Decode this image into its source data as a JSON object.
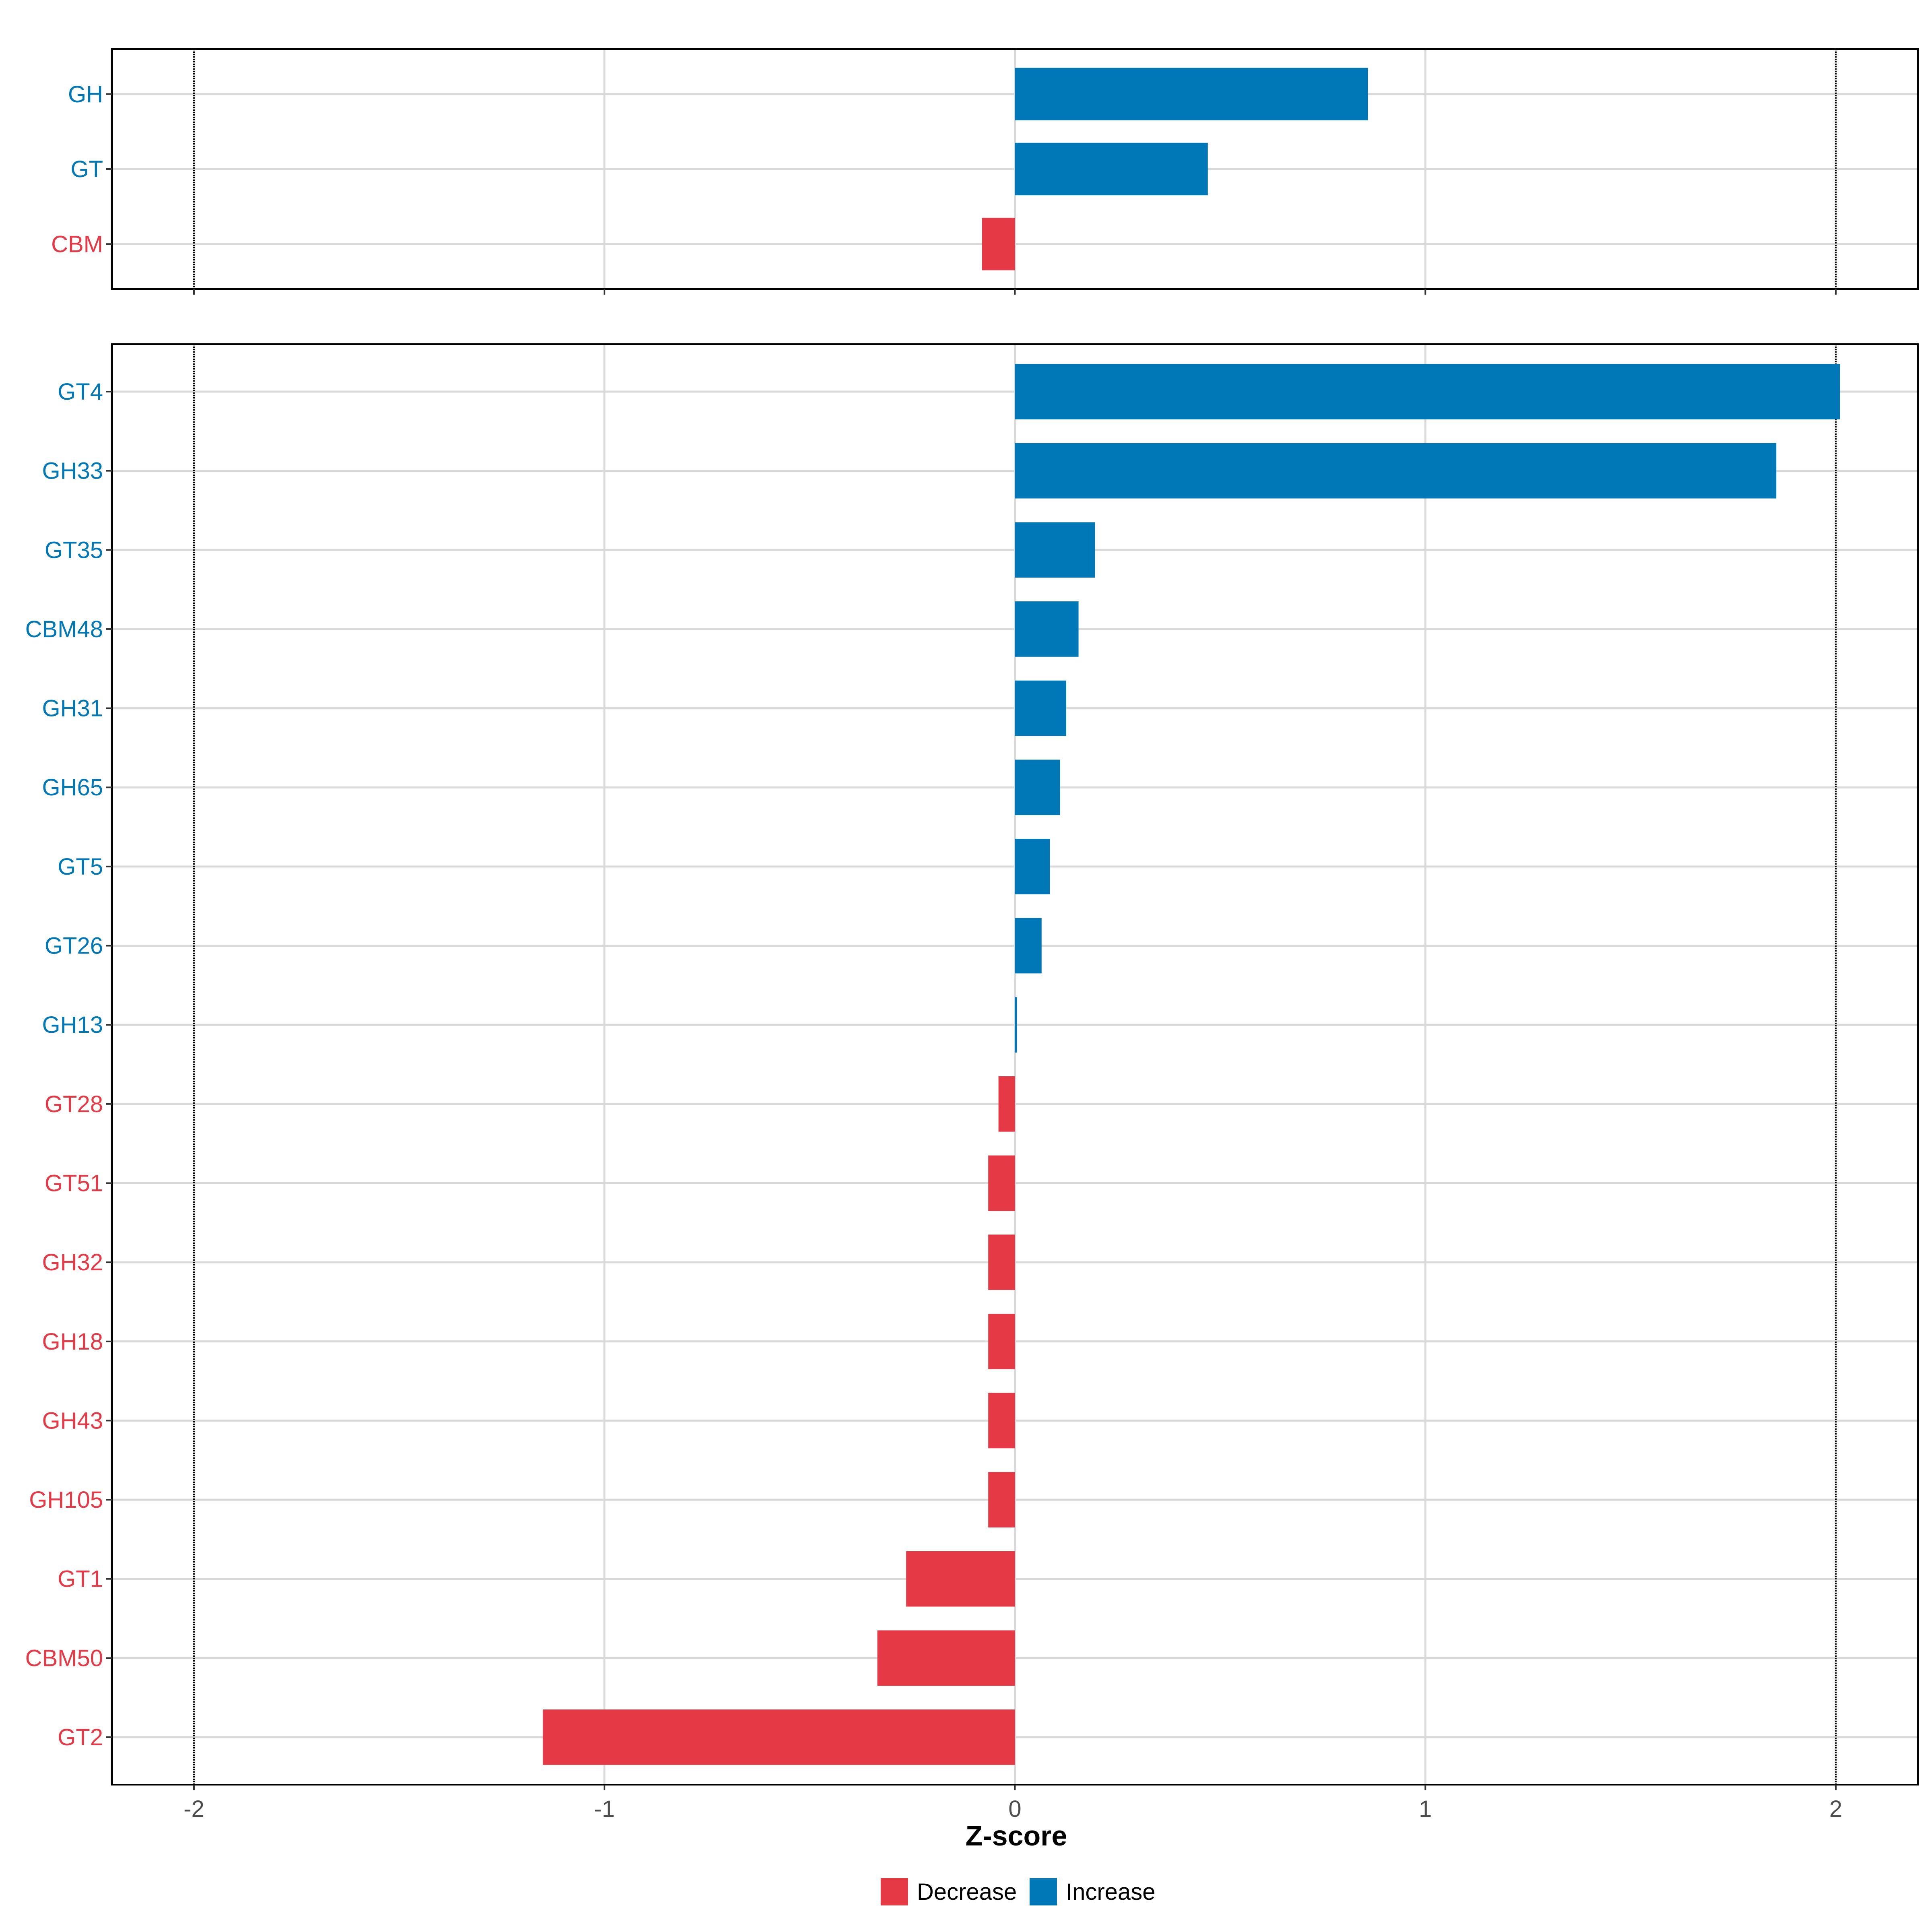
{
  "chart_data": {
    "type": "bar",
    "orientation": "horizontal",
    "xlabel": "Z-score",
    "xlim": [
      -2.2,
      2.2
    ],
    "xticks": [
      "-2",
      "-1",
      "0",
      "1",
      "2"
    ],
    "reference_lines": [
      -2,
      2
    ],
    "grid": true,
    "legend": {
      "placement": "bottom",
      "entries": [
        {
          "label": "Decrease",
          "color": "#E63946"
        },
        {
          "label": "Increase",
          "color": "#0077B6"
        }
      ]
    },
    "colors": {
      "Decrease": "#E63946",
      "Increase": "#0077B6"
    },
    "panels": [
      {
        "categories": [
          "GH",
          "GT",
          "CBM"
        ],
        "values": [
          0.86,
          0.47,
          -0.08
        ]
      },
      {
        "categories": [
          "GT4",
          "GH33",
          "GT35",
          "CBM48",
          "GH31",
          "GH65",
          "GT5",
          "GT26",
          "GH13",
          "GT28",
          "GT51",
          "GH32",
          "GH18",
          "GH43",
          "GH105",
          "GT1",
          "CBM50",
          "GT2"
        ],
        "values": [
          2.01,
          1.855,
          0.195,
          0.155,
          0.125,
          0.11,
          0.085,
          0.065,
          0.005,
          -0.04,
          -0.065,
          -0.065,
          -0.065,
          -0.065,
          -0.065,
          -0.265,
          -0.335,
          -1.15
        ]
      }
    ]
  }
}
